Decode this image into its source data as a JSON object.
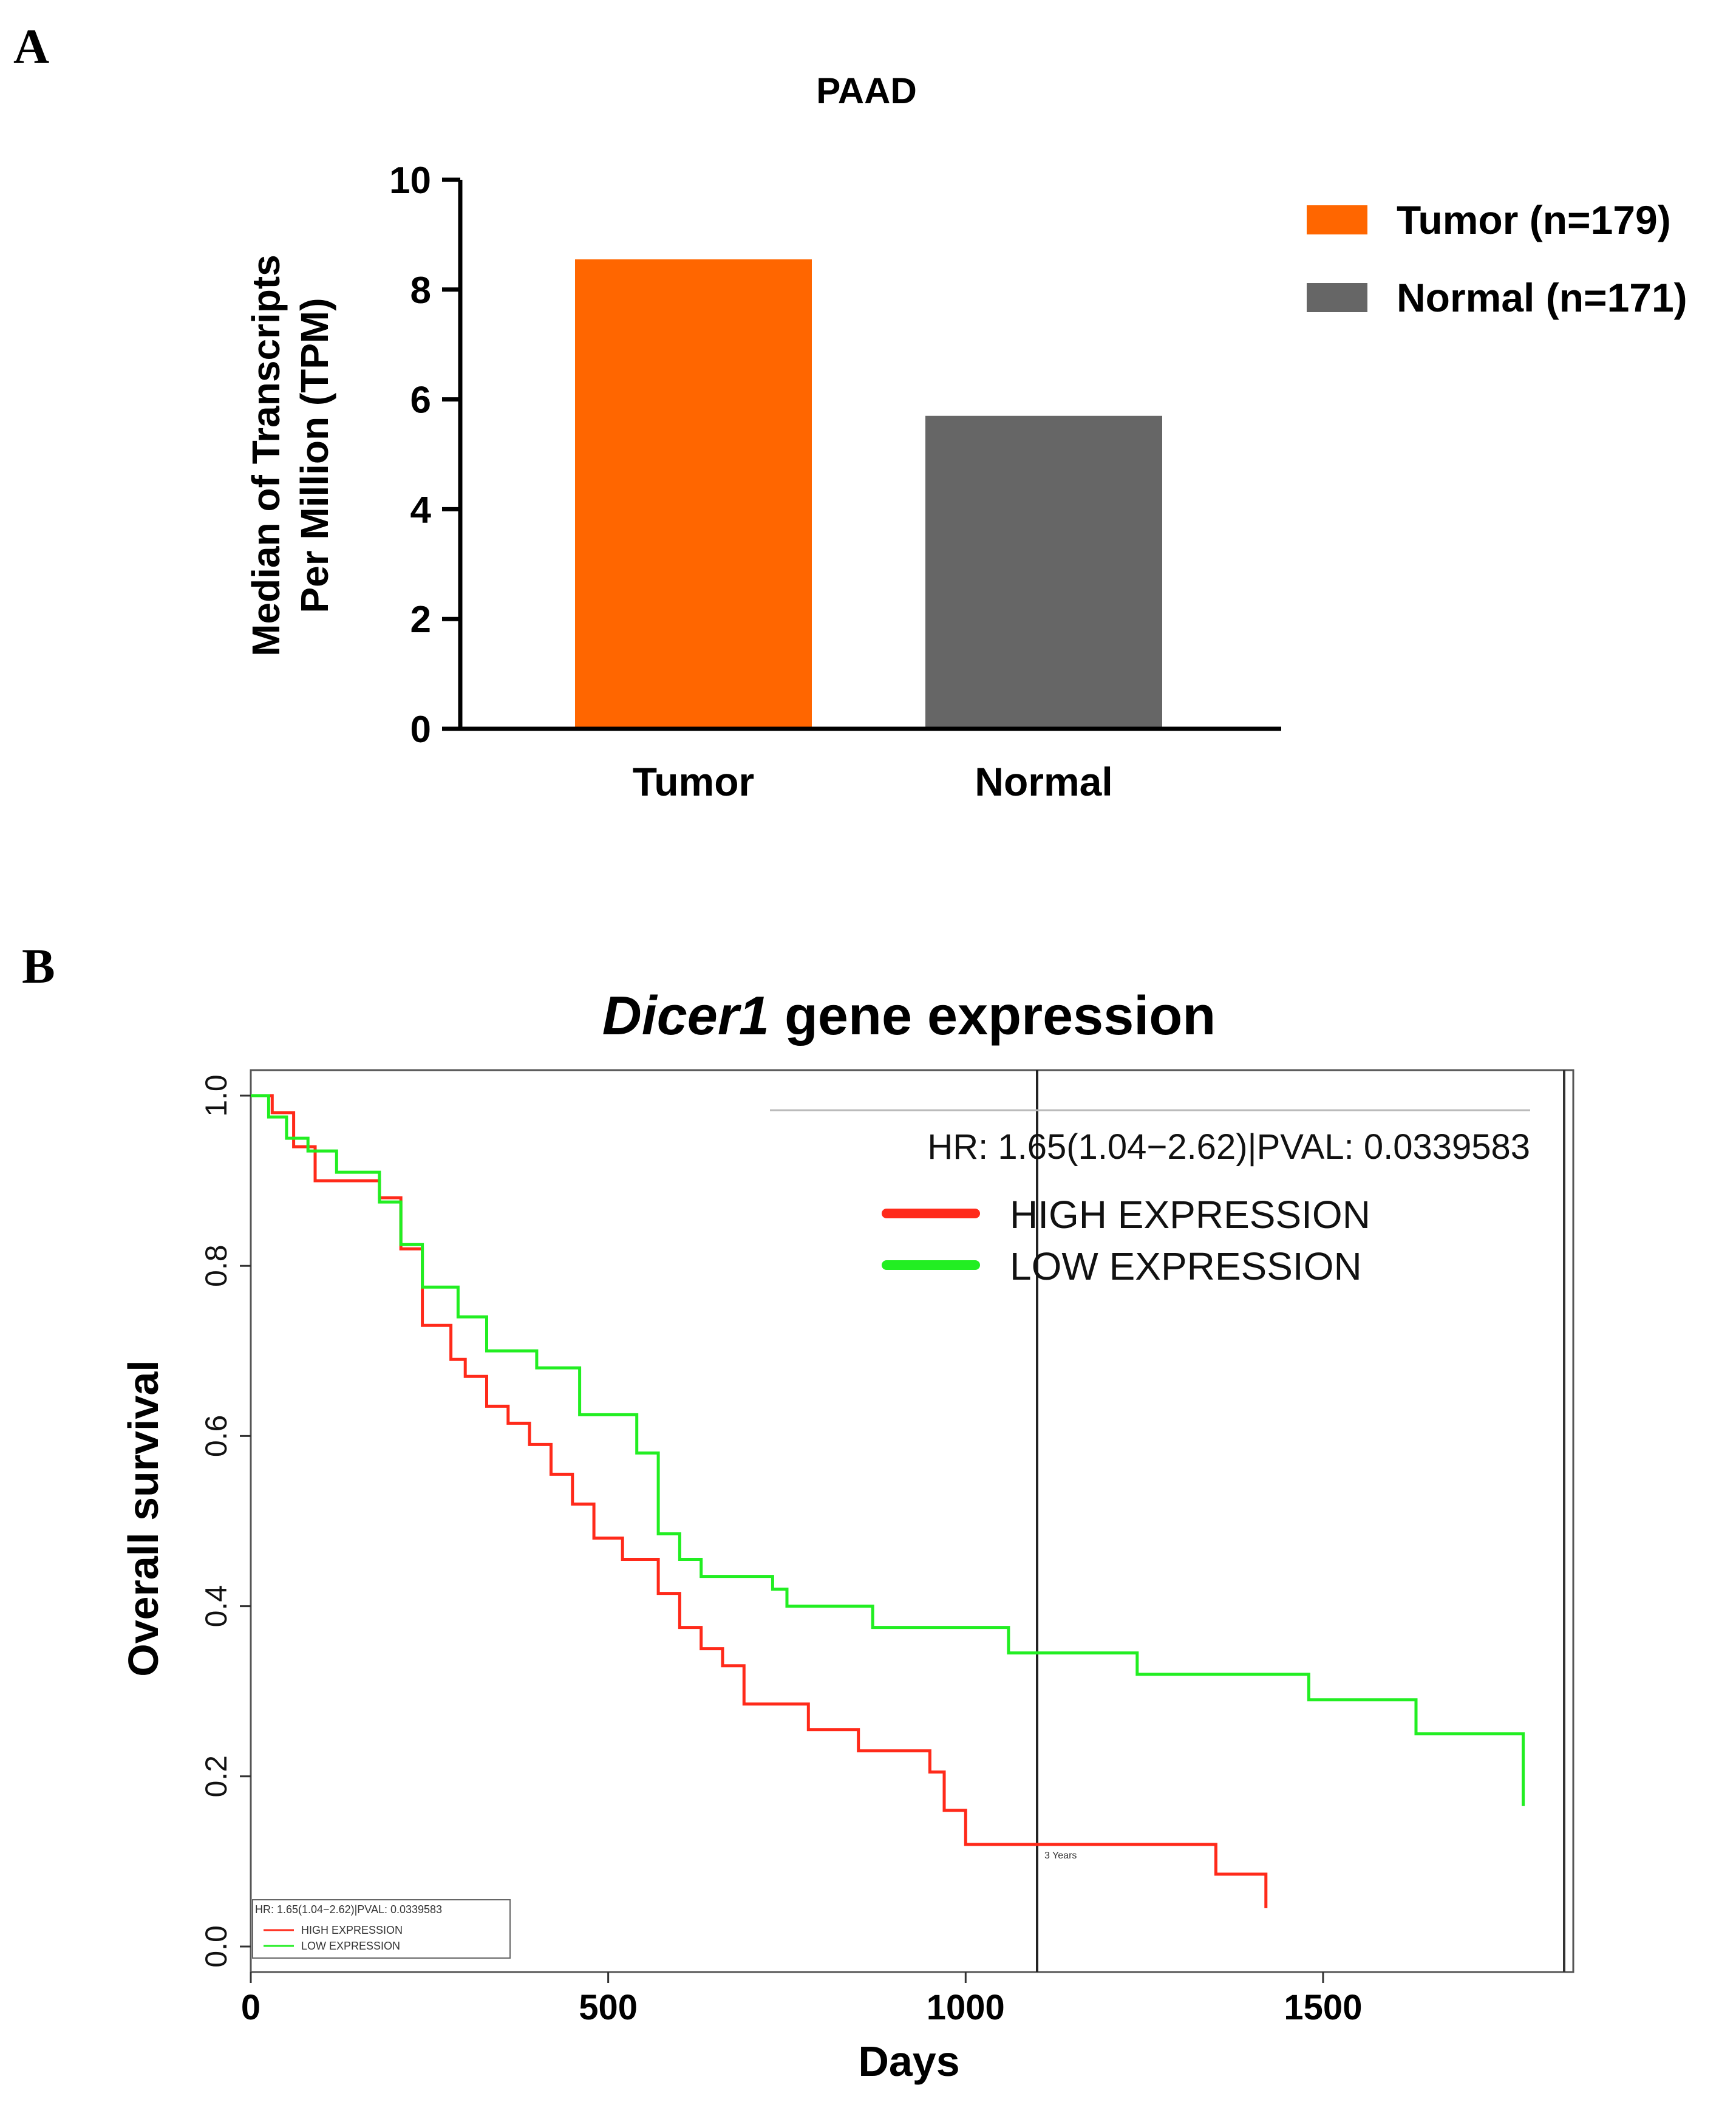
{
  "panels": {
    "a": {
      "letter": "A"
    },
    "b": {
      "letter": "B"
    }
  },
  "chart_data": [
    {
      "type": "bar",
      "title": "PAAD",
      "categories": [
        "Tumor",
        "Normal"
      ],
      "values": [
        8.55,
        5.7
      ],
      "colors": [
        "#ff6600",
        "#666666"
      ],
      "ylabel_line1": "Median of Transcripts",
      "ylabel_line2": "Per Million (TPM)",
      "ylim": [
        0,
        10
      ],
      "yticks": [
        "0",
        "2",
        "4",
        "6",
        "8",
        "10"
      ],
      "legend": [
        {
          "label": "Tumor (n=179)",
          "color": "#ff6600"
        },
        {
          "label": "Normal (n=171)",
          "color": "#666666"
        }
      ]
    },
    {
      "type": "line",
      "title_gene": "Dicer1",
      "title_rest": " gene expression",
      "xlabel": "Days",
      "ylabel": "Overall survival",
      "xlim": [
        0,
        1850
      ],
      "ylim": [
        -0.03,
        1.03
      ],
      "xticks": [
        "0",
        "500",
        "1000",
        "1500"
      ],
      "yticks": [
        "0.0",
        "0.2",
        "0.4",
        "0.6",
        "0.8",
        "1.0"
      ],
      "hr_text": "HR: 1.65(1.04−2.62)|PVAL: 0.0339583",
      "marker": {
        "x": 1100,
        "label": "3 Years"
      },
      "series": [
        {
          "name": "HIGH EXPRESSION",
          "color": "#ff2a1a",
          "x": [
            0,
            30,
            60,
            90,
            180,
            210,
            240,
            280,
            300,
            330,
            360,
            390,
            420,
            450,
            480,
            520,
            570,
            600,
            630,
            660,
            690,
            780,
            850,
            950,
            970,
            1000,
            1350,
            1420
          ],
          "y": [
            1.0,
            0.98,
            0.94,
            0.9,
            0.88,
            0.82,
            0.73,
            0.69,
            0.67,
            0.635,
            0.615,
            0.59,
            0.555,
            0.52,
            0.48,
            0.455,
            0.415,
            0.375,
            0.35,
            0.33,
            0.285,
            0.255,
            0.23,
            0.205,
            0.16,
            0.12,
            0.085,
            0.045
          ]
        },
        {
          "name": "LOW EXPRESSION",
          "color": "#22ee22",
          "x": [
            0,
            25,
            50,
            80,
            120,
            180,
            210,
            240,
            290,
            330,
            400,
            460,
            540,
            570,
            600,
            630,
            730,
            750,
            870,
            1060,
            1240,
            1480,
            1630,
            1780
          ],
          "y": [
            1.0,
            0.975,
            0.95,
            0.935,
            0.91,
            0.875,
            0.825,
            0.775,
            0.74,
            0.7,
            0.68,
            0.625,
            0.58,
            0.485,
            0.455,
            0.435,
            0.42,
            0.4,
            0.375,
            0.345,
            0.32,
            0.29,
            0.25,
            0.165
          ]
        }
      ]
    }
  ]
}
